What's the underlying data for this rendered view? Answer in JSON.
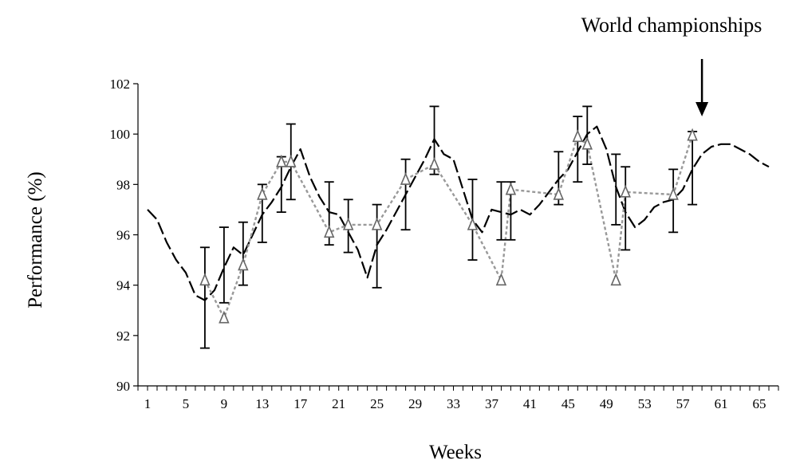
{
  "chart_data": {
    "type": "line",
    "title": "",
    "xlabel": "Weeks",
    "ylabel": "Performance (%)",
    "xlim": [
      0,
      67
    ],
    "ylim": [
      90,
      102
    ],
    "x_ticks": [
      1,
      5,
      9,
      13,
      17,
      21,
      25,
      29,
      33,
      37,
      41,
      45,
      49,
      53,
      57,
      61,
      65
    ],
    "y_ticks": [
      90,
      92,
      94,
      96,
      98,
      100,
      102
    ],
    "grid": false,
    "annotation": {
      "text": "World championships",
      "x": 59
    },
    "series": [
      {
        "style": "long-dash",
        "color": "#000000",
        "x": [
          1,
          2,
          3,
          4,
          5,
          6,
          7,
          8,
          9,
          10,
          11,
          12,
          13,
          14,
          15,
          16,
          17,
          18,
          19,
          20,
          21,
          22,
          23,
          24,
          25,
          26,
          27,
          28,
          29,
          30,
          31,
          32,
          33,
          34,
          35,
          36,
          37,
          38,
          39,
          40,
          41,
          42,
          43,
          44,
          45,
          46,
          47,
          48,
          49,
          50,
          51,
          52,
          53,
          54,
          55,
          56,
          57,
          58,
          59,
          60,
          61,
          62,
          63,
          64,
          65,
          66
        ],
        "y": [
          97.0,
          96.6,
          95.7,
          95.0,
          94.5,
          93.6,
          93.4,
          93.8,
          94.7,
          95.5,
          95.2,
          96.0,
          96.8,
          97.3,
          97.9,
          98.7,
          99.4,
          98.3,
          97.5,
          96.9,
          96.8,
          96.1,
          95.4,
          94.3,
          95.6,
          96.2,
          96.9,
          97.6,
          98.3,
          99.0,
          99.8,
          99.2,
          99.0,
          97.8,
          96.6,
          96.1,
          97.0,
          96.9,
          96.8,
          97.0,
          96.8,
          97.2,
          97.7,
          98.2,
          98.6,
          99.3,
          100.0,
          100.3,
          99.4,
          97.9,
          96.9,
          96.3,
          96.6,
          97.1,
          97.3,
          97.4,
          97.8,
          98.6,
          99.2,
          99.5,
          99.6,
          99.6,
          99.4,
          99.2,
          98.9,
          98.7
        ]
      },
      {
        "style": "dotted",
        "color": "#999999",
        "marker": "triangle",
        "x": [
          7,
          9,
          11,
          13,
          15,
          16,
          20,
          22,
          25,
          28,
          31,
          35,
          38,
          39,
          44,
          46,
          47,
          50,
          51,
          56,
          58
        ],
        "y": [
          94.2,
          92.7,
          94.8,
          97.6,
          98.9,
          98.9,
          96.1,
          96.4,
          96.4,
          98.2,
          98.8,
          96.4,
          94.2,
          97.8,
          97.6,
          99.9,
          99.6,
          94.2,
          97.7,
          97.6,
          99.95
        ]
      }
    ],
    "error_bars": [
      {
        "x": 7,
        "low": 91.5,
        "high": 95.5
      },
      {
        "x": 9,
        "low": 93.3,
        "high": 96.3
      },
      {
        "x": 11,
        "low": 94.0,
        "high": 96.5
      },
      {
        "x": 13,
        "low": 95.7,
        "high": 98.0
      },
      {
        "x": 15,
        "low": 96.9,
        "high": 99.1
      },
      {
        "x": 16,
        "low": 97.4,
        "high": 100.4
      },
      {
        "x": 20,
        "low": 95.6,
        "high": 98.1
      },
      {
        "x": 22,
        "low": 95.3,
        "high": 97.4
      },
      {
        "x": 25,
        "low": 93.9,
        "high": 97.2
      },
      {
        "x": 28,
        "low": 96.2,
        "high": 99.0
      },
      {
        "x": 31,
        "low": 98.4,
        "high": 101.1
      },
      {
        "x": 35,
        "low": 95.0,
        "high": 98.2
      },
      {
        "x": 38,
        "low": 95.8,
        "high": 98.1
      },
      {
        "x": 39,
        "low": 95.8,
        "high": 98.1
      },
      {
        "x": 44,
        "low": 97.2,
        "high": 99.3
      },
      {
        "x": 46,
        "low": 98.1,
        "high": 100.7
      },
      {
        "x": 47,
        "low": 98.8,
        "high": 101.1
      },
      {
        "x": 50,
        "low": 96.4,
        "high": 99.2
      },
      {
        "x": 51,
        "low": 95.4,
        "high": 98.7
      },
      {
        "x": 56,
        "low": 96.1,
        "high": 98.6
      },
      {
        "x": 58,
        "low": 97.2,
        "high": 100.1
      }
    ]
  }
}
